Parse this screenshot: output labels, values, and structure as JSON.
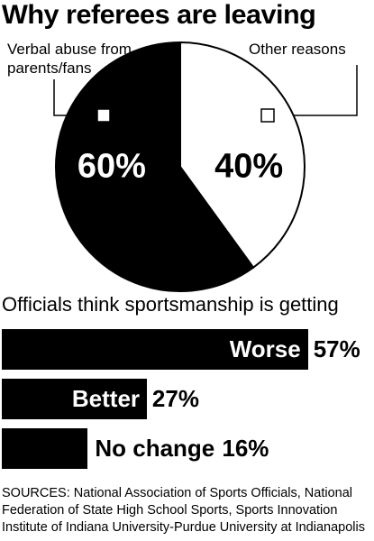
{
  "chart_data": [
    {
      "type": "pie",
      "title": "Why referees are leaving",
      "categories": [
        "Verbal abuse from parents/fans",
        "Other reasons"
      ],
      "values": [
        60,
        40
      ],
      "value_labels": [
        "60%",
        "40%"
      ],
      "colors": [
        "#000000",
        "#ffffff"
      ]
    },
    {
      "type": "bar",
      "orientation": "horizontal",
      "title": "Officials think sportsmanship is getting",
      "categories": [
        "Worse",
        "Better",
        "No change"
      ],
      "values": [
        57,
        27,
        16
      ],
      "value_labels": [
        "57%",
        "27%",
        "16%"
      ],
      "color": "#000000"
    }
  ],
  "footer": {
    "sources": "SOURCES: National Association of Sports Officials, National Federation of State High School Sports, Sports Innovation Institute of Indiana University-Purdue University at Indianapolis"
  }
}
